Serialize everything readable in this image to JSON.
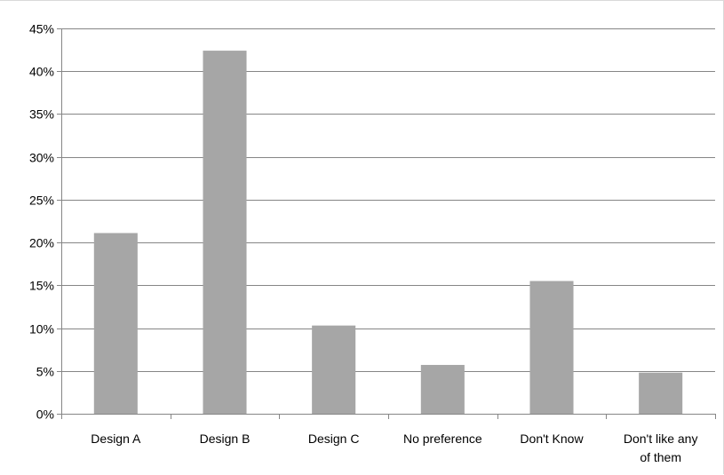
{
  "chart_data": {
    "type": "bar",
    "categories": [
      [
        "Design A"
      ],
      [
        "Design B"
      ],
      [
        "Design C"
      ],
      [
        "No preference"
      ],
      [
        "Don't Know"
      ],
      [
        "Don't like any",
        "of them"
      ]
    ],
    "values": [
      21.1,
      42.4,
      10.3,
      5.7,
      15.5,
      4.8
    ],
    "y_tick_labels": [
      "0%",
      "5%",
      "10%",
      "15%",
      "20%",
      "25%",
      "30%",
      "35%",
      "40%",
      "45%"
    ],
    "ylim": [
      0,
      45
    ],
    "y_tick_step": 5,
    "y_unit": "%",
    "grid": true,
    "legend": "none",
    "title": "",
    "xlabel": "",
    "ylabel": "",
    "bar_color": "#a6a6a6",
    "grid_color": "#868686"
  }
}
